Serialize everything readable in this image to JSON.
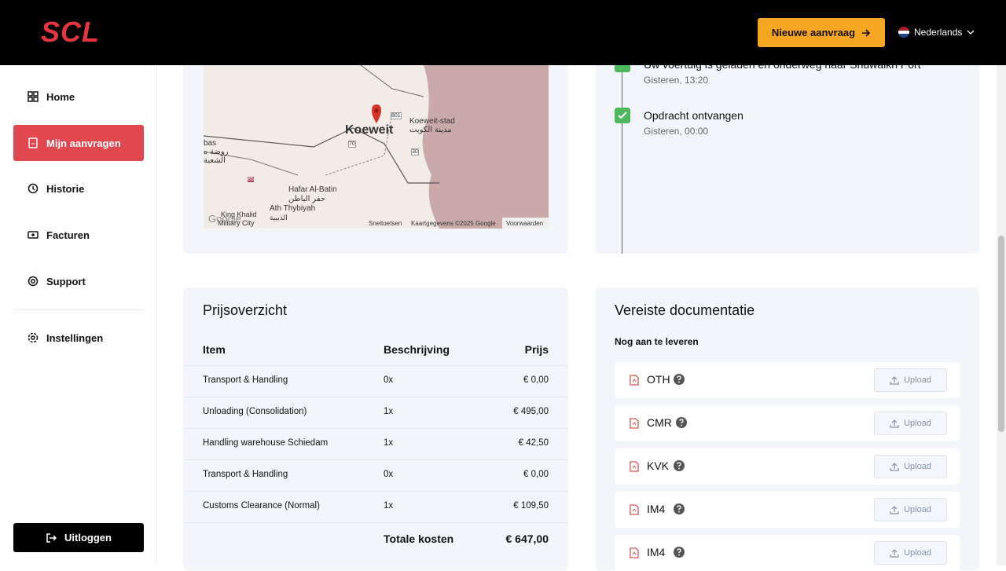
{
  "header": {
    "logo": "SCL",
    "new_request": "Nieuwe aanvraag",
    "language": "Nederlands"
  },
  "sidebar": {
    "nav": [
      "Home",
      "Mijn aanvragen",
      "Historie",
      "Facturen",
      "Support",
      "Instellingen"
    ],
    "logout": "Uitloggen"
  },
  "map": {
    "labels": [
      "Koeweit",
      "Koeweit-stad",
      "مدينة الكويت",
      "Hafar Al-Batin",
      "حفر الباطن",
      "Ath Thybiyah",
      "الذيبية",
      "King Khalid",
      "Military City",
      "801",
      "70",
      "30",
      "85",
      "bas",
      "روضة ه",
      "الشعبة"
    ],
    "attribution": [
      "Sneltoetsen",
      "Kaartgegevens ©2025 Google",
      "Voorwaarden"
    ],
    "google": "Google"
  },
  "timeline": [
    {
      "title": "Uw voertuig is geladen en onderweg naar Shuwaikh Port",
      "time": "Gisteren, 13:20"
    },
    {
      "title": "Opdracht ontvangen",
      "time": "Gisteren, 00:00"
    }
  ],
  "pricing": {
    "title": "Prijsoverzicht",
    "columns": [
      "Item",
      "Beschrijving",
      "Prijs"
    ],
    "rows": [
      [
        "Transport & Handling",
        "0x",
        "€ 0,00"
      ],
      [
        "Unloading (Consolidation)",
        "1x",
        "€ 495,00"
      ],
      [
        "Handling warehouse Schiedam",
        "1x",
        "€ 42,50"
      ],
      [
        "Transport & Handling",
        "0x",
        "€ 0,00"
      ],
      [
        "Customs Clearance (Normal)",
        "1x",
        "€ 109,50"
      ]
    ],
    "total_label": "Totale kosten",
    "total": "€ 647,00"
  },
  "documents": {
    "title": "Vereiste documentatie",
    "subtitle": "Nog aan te leveren",
    "items": [
      {
        "name": "OTH",
        "action": "Upload"
      },
      {
        "name": "CMR",
        "action": "Upload"
      },
      {
        "name": "KVK",
        "action": "Upload"
      },
      {
        "name": "IM4",
        "action": "Upload"
      },
      {
        "name": "IM4",
        "action": "Upload"
      }
    ]
  }
}
